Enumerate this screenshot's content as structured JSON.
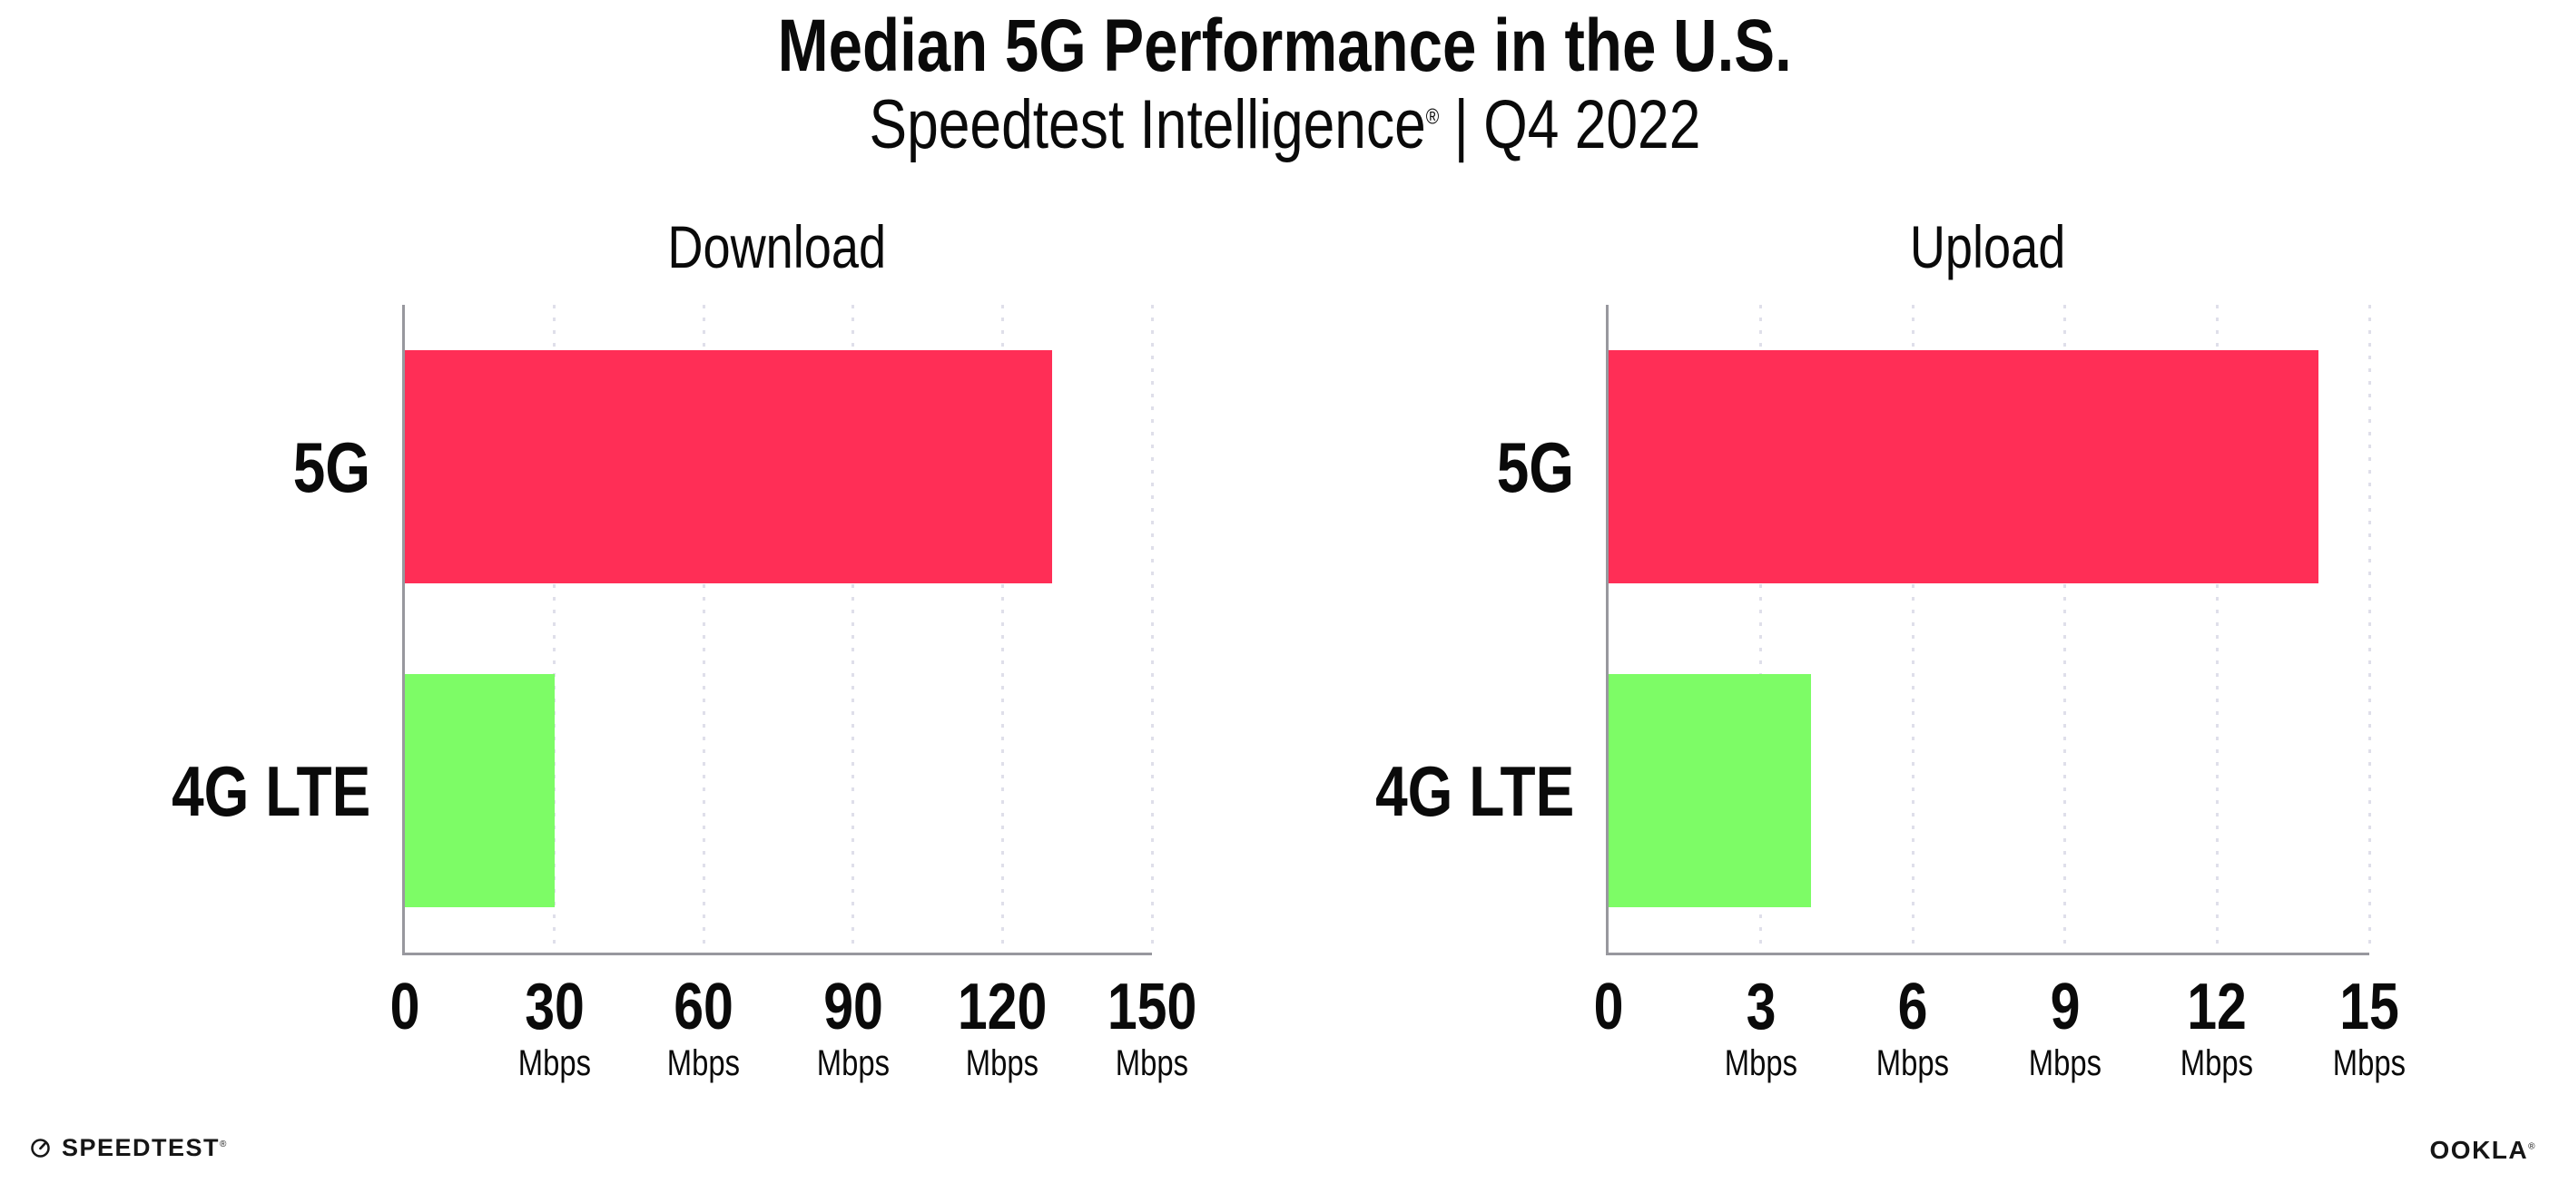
{
  "header": {
    "title": "Median 5G Performance in the U.S.",
    "subtitle": {
      "brand": "Speedtest Intelligence",
      "registered_mark": "®",
      "separator": "|",
      "period": "Q4 2022"
    }
  },
  "chart_data": [
    {
      "type": "bar",
      "orientation": "horizontal",
      "title": "Download",
      "categories": [
        "5G",
        "4G LTE"
      ],
      "values": [
        130,
        30
      ],
      "unit": "Mbps",
      "xlim": [
        0,
        150
      ],
      "xticks": [
        0,
        30,
        60,
        90,
        120,
        150
      ],
      "bar_colors": [
        "#FF2E56",
        "#7DFC66"
      ],
      "grid": "dotted-vertical-at-each-tick",
      "legend": "none"
    },
    {
      "type": "bar",
      "orientation": "horizontal",
      "title": "Upload",
      "categories": [
        "5G",
        "4G LTE"
      ],
      "values": [
        14,
        4
      ],
      "unit": "Mbps",
      "xlim": [
        0,
        15
      ],
      "xticks": [
        0,
        3,
        6,
        9,
        12,
        15
      ],
      "bar_colors": [
        "#FF2E56",
        "#7DFC66"
      ],
      "grid": "dotted-vertical-at-each-tick",
      "legend": "none"
    }
  ],
  "footer": {
    "speedtest_wordmark": "SPEEDTEST",
    "speedtest_mark": "®",
    "ookla_wordmark": "OOKLA",
    "ookla_mark": "®"
  },
  "colors": {
    "bar_5g": "#FF2E56",
    "bar_4g_lte": "#7DFC66",
    "axis": "#98989E",
    "gridline": "#DFDFEA",
    "text": "#0A0A0A"
  }
}
